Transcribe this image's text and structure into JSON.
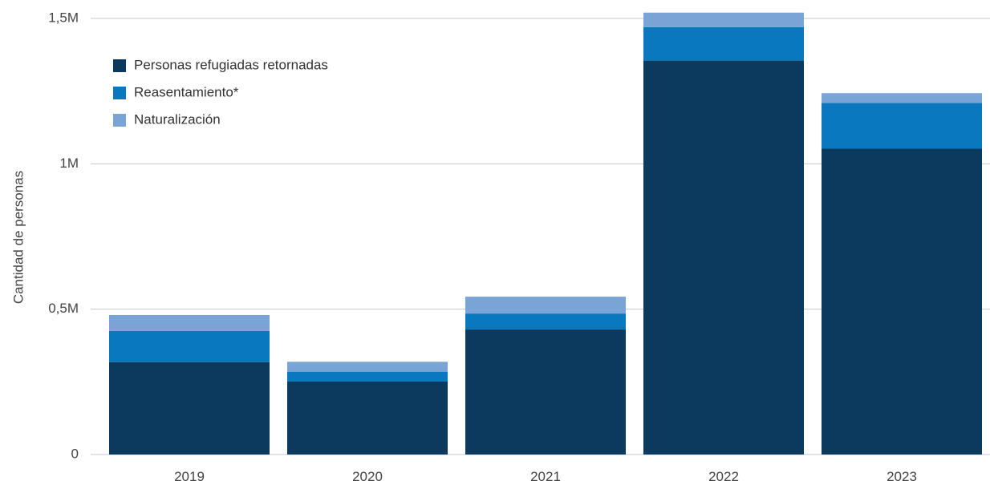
{
  "chart_data": {
    "type": "bar",
    "stacked": true,
    "categories": [
      "2019",
      "2020",
      "2021",
      "2022",
      "2023"
    ],
    "series": [
      {
        "name": "Personas refugiadas retornadas",
        "color": "#0b3a5e",
        "values": [
          318000,
          251000,
          430000,
          1355000,
          1052000
        ]
      },
      {
        "name": "Reasentamiento*",
        "color": "#0a78be",
        "values": [
          107000,
          34000,
          55000,
          115000,
          157000
        ]
      },
      {
        "name": "Naturalización",
        "color": "#7aa3d6",
        "values": [
          55000,
          34000,
          58000,
          50000,
          34000
        ]
      }
    ],
    "ylabel": "Cantidad de personas",
    "xlabel": "",
    "ylim": [
      0,
      1500000
    ],
    "yticks": [
      {
        "value": 0,
        "label": "0"
      },
      {
        "value": 500000,
        "label": "0,5M"
      },
      {
        "value": 1000000,
        "label": "1M"
      },
      {
        "value": 1500000,
        "label": "1,5M"
      }
    ],
    "grid": true,
    "legend_position": "top-left"
  }
}
